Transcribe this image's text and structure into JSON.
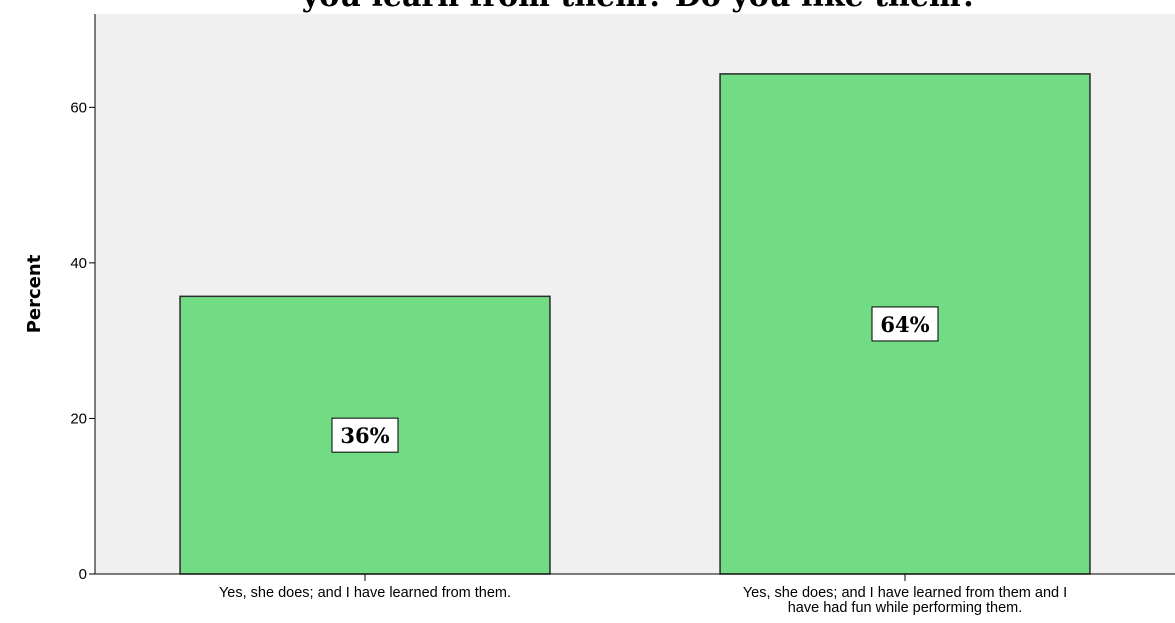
{
  "chart_data": {
    "type": "bar",
    "title": "you learn from them? Do you like them?",
    "ylabel": "Percent",
    "xlabel": "",
    "ylim": [
      0,
      72
    ],
    "yticks": [
      0,
      20,
      40,
      60
    ],
    "grid": false,
    "colors": {
      "plot_bg": "#f0f0f0",
      "bar_fill": "#72dc84",
      "bar_stroke": "#2b2b2b"
    },
    "categories": [
      [
        "Yes, she does; and I have learned from them."
      ],
      [
        "Yes, she does; and I have learned from them and I",
        "have had fun while performing them."
      ]
    ],
    "values": [
      35.7,
      64.3
    ],
    "data_labels": [
      "36%",
      "64%"
    ]
  }
}
